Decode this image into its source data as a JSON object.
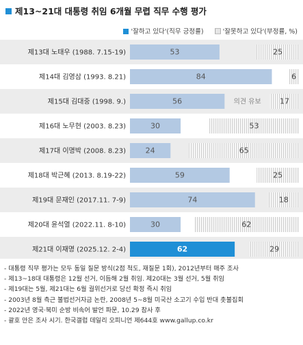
{
  "title": "제13~21대 대통령 취임 6개월 무렵 직무 수행 평가",
  "legend": {
    "positive": "'잘하고 있다'(직무 긍정률)",
    "negative": "'잘못하고 있다'(부정률, %)"
  },
  "chart_data": {
    "type": "bar",
    "orientation": "horizontal",
    "stacked": true,
    "xlim": [
      0,
      100
    ],
    "categories": [
      "제13대 노태우 (1988. 7.15-19)",
      "제14대 김영삼 (1993. 8.21)",
      "제15대 김대중 (1998. 9.)",
      "제16대 노무현 (2003. 8.23)",
      "제17대 이명박 (2008. 8.23)",
      "제18대 박근혜 (2013. 8.19-22)",
      "제19대 문재인 (2017.11. 7-9)",
      "제20대 윤석열 (2022.11. 8-10)",
      "제21대 이재명 (2025.12. 2-4)"
    ],
    "series": [
      {
        "name": "'잘하고 있다'(직무 긍정률)",
        "values": [
          53,
          84,
          56,
          30,
          24,
          59,
          74,
          30,
          62
        ]
      },
      {
        "name": "'잘못하고 있다'(부정률, %)",
        "values": [
          25,
          6,
          17,
          53,
          65,
          25,
          18,
          62,
          29
        ]
      }
    ],
    "annotations": [
      {
        "category": "제15대 김대중 (1998. 9.)",
        "text": "의견 유보"
      }
    ],
    "colors": {
      "positive": "#b3c9e3",
      "positive_highlight": "#1f8fd6",
      "negative_stripe": "#cfcfcf",
      "row_stripe": "#ececec",
      "label_text": "#555555",
      "highlight_text": "#ffffff"
    }
  },
  "notes": [
    "- 대통령 직무 평가는 모두 동일 질문 방식(2점 척도, 재질문 1회), 2012년부터 매주 조사",
    "- 제13~18대 대통령은 12월 선거, 이듬해 2월 취임. 제20대는 3월 선거, 5월 취임",
    "- 제19대는 5월, 제21대는 6월 궐위선거로 당선 확정 즉시 취임",
    "- 2003년 8월 측근 불법선거자금 논란, 2008년 5~8월 미국산 소고기 수입 반대 촛불집회",
    "- 2022년 영국·북미 순방 비속어 발언 파문, 10.29 참사 후",
    "- 괄호 안은 조사 시기. 한국갤럽 데일리 오피니언 제644호 www.gallup.co.kr"
  ]
}
